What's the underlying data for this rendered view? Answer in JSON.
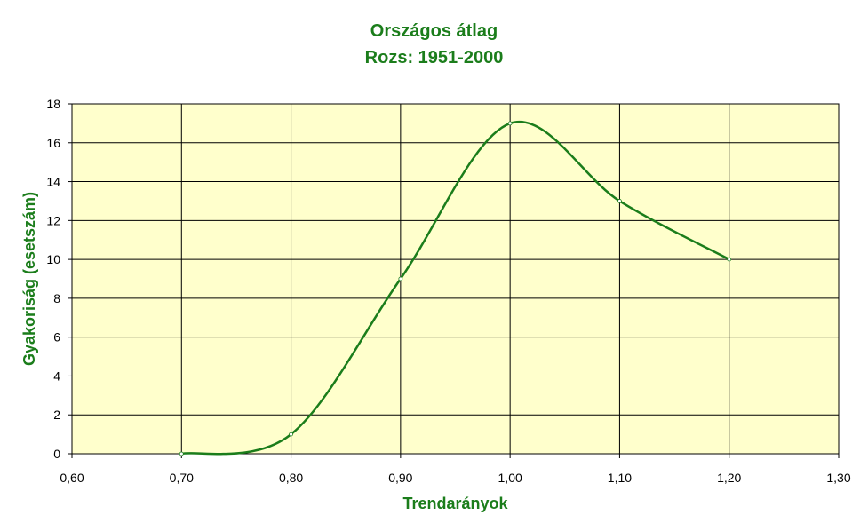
{
  "chart_data": {
    "type": "line",
    "title": "Országos átlag",
    "subtitle": "Rozs: 1951-2000",
    "xlabel": "Trendarányok",
    "ylabel": "Gyakoriság (esetszám)",
    "xlim": [
      0.6,
      1.3
    ],
    "ylim": [
      0,
      18
    ],
    "x_ticks": [
      "0,60",
      "0,70",
      "0,80",
      "0,90",
      "1,00",
      "1,10",
      "1,20",
      "1,30"
    ],
    "y_ticks": [
      "0",
      "2",
      "4",
      "6",
      "8",
      "10",
      "12",
      "14",
      "16",
      "18"
    ],
    "grid": true,
    "legend": "none",
    "series": [
      {
        "x": [
          0.7,
          0.8,
          0.9,
          1.0,
          1.1,
          1.2
        ],
        "y": [
          0,
          1,
          9,
          17,
          13,
          10
        ]
      }
    ],
    "colors": {
      "line": "#1b7d1b",
      "plot_background": "#ffffcc",
      "grid": "#000000",
      "text_accent": "#1b7d1b"
    }
  }
}
